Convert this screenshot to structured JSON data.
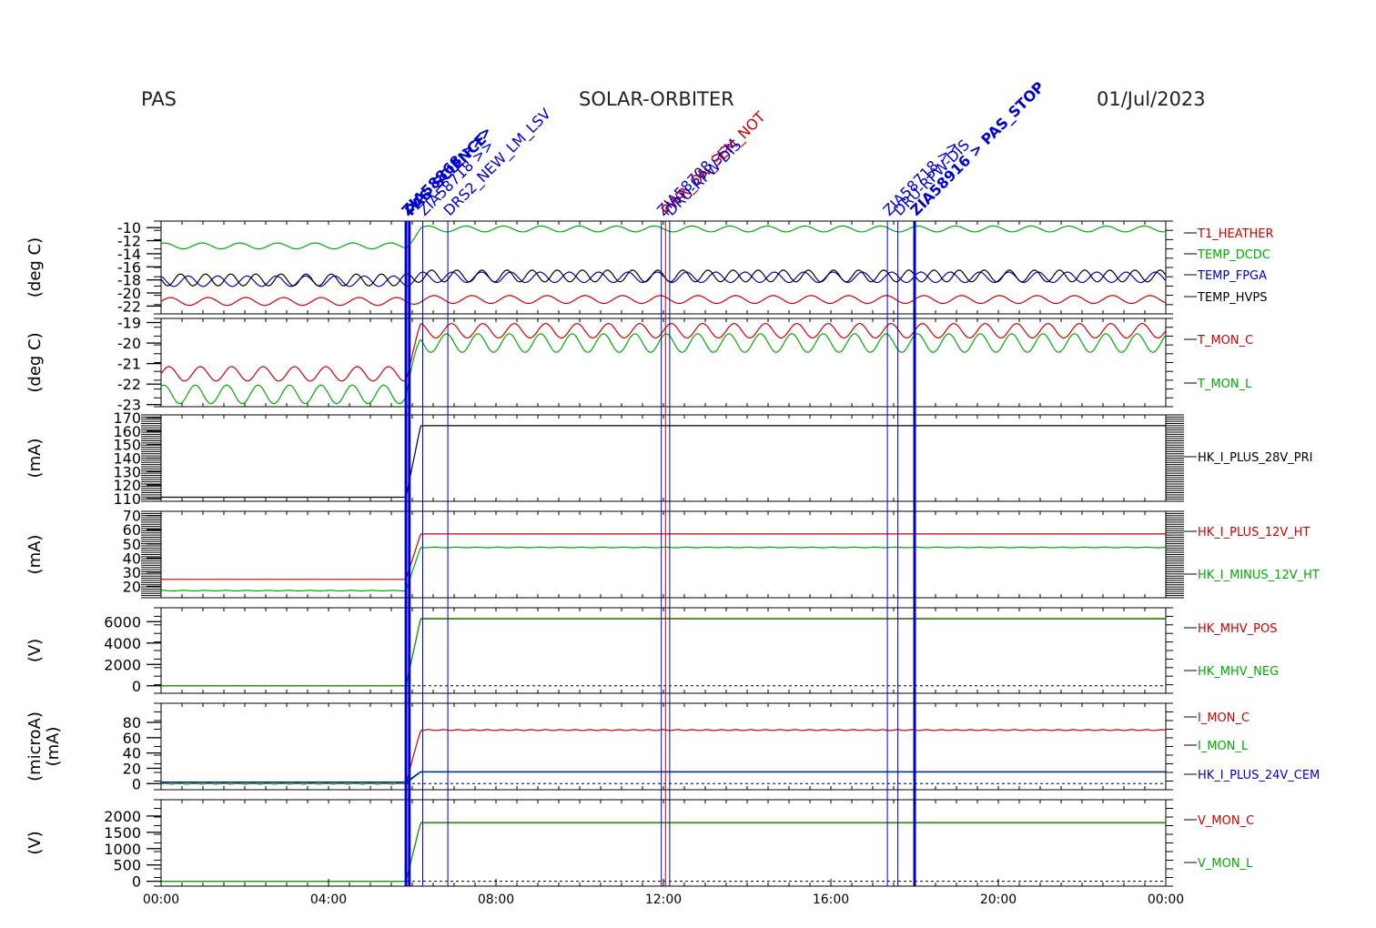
{
  "header": {
    "left": "PAS",
    "center": "SOLAR-ORBITER",
    "right": "01/Jul/2023"
  },
  "colors": {
    "red": "#cc0000",
    "green": "#00aa00",
    "blue": "#0000cc",
    "black": "#000000",
    "brown": "#8b5a00"
  },
  "chart_data": {
    "type": "line",
    "x_axis": {
      "ticks": [
        "00:00",
        "04:00",
        "08:00",
        "12:00",
        "16:00",
        "20:00",
        "00:00"
      ],
      "range_hours": [
        0,
        24
      ]
    },
    "events": [
      {
        "t": 5.85,
        "color": "#0000cc",
        "label": "ZIA58868 >>>",
        "bold": true
      },
      {
        "t": 5.93,
        "color": "#0000cc",
        "label": "PAS_SCIENCE",
        "bold": true
      },
      {
        "t": 6.25,
        "color": "#0000cc",
        "label": "ZIA58718 >>",
        "bold": false
      },
      {
        "t": 6.85,
        "color": "#0000cc",
        "label": "DRS2_NEW_LM_LSV",
        "bold": false
      },
      {
        "t": 11.95,
        "color": "#0000cc",
        "label": "ZIA58708 >>",
        "bold": false
      },
      {
        "t": 12.05,
        "color": "#cc0000",
        "label": "PWR_ON_SEM_NOT",
        "bold": false
      },
      {
        "t": 12.15,
        "color": "#0000cc",
        "label": "DRU-RPW-DIS",
        "bold": false
      },
      {
        "t": 17.35,
        "color": "#0000cc",
        "label": "ZIA58718 >>",
        "bold": false
      },
      {
        "t": 17.6,
        "color": "#0000cc",
        "label": "DRU-RPW-DIS",
        "bold": false
      },
      {
        "t": 18.0,
        "color": "#0000cc",
        "label": "ZIA58916 > PAS_STOP",
        "bold": true
      }
    ],
    "panels": [
      {
        "ylabel": "(deg C)",
        "ylim": [
          -23.2,
          -9
        ],
        "yticks": [
          "-10",
          "-12",
          "-14",
          "-16",
          "-18",
          "-20",
          "-22"
        ],
        "ytick_values": [
          -10,
          -12,
          -14,
          -16,
          -18,
          -20,
          -22
        ],
        "series": [
          {
            "name": "T1_HEATHER",
            "color": "#cc0000",
            "before": -21.3,
            "after": -21.0,
            "amp": 0.6,
            "period": 0.9
          },
          {
            "name": "TEMP_DCDC",
            "color": "#00aa00",
            "before": -12.8,
            "after": -10.2,
            "amp": 0.45,
            "period": 0.9
          },
          {
            "name": "TEMP_FPGA",
            "color": "#0000cc",
            "before": -18.2,
            "after": -17.6,
            "amp": 0.8,
            "period": 0.7
          },
          {
            "name": "TEMP_HVPS",
            "color": "#000000",
            "before": -18.0,
            "after": -17.4,
            "amp": 0.9,
            "period": 0.6
          }
        ]
      },
      {
        "ylabel": "(deg C)",
        "ylim": [
          -23.1,
          -18.8
        ],
        "yticks": [
          "-19",
          "-20",
          "-21",
          "-22",
          "-23"
        ],
        "ytick_values": [
          -19,
          -20,
          -21,
          -22,
          -23
        ],
        "series": [
          {
            "name": "T_MON_C",
            "color": "#cc0000",
            "before": -21.5,
            "after": -19.4,
            "amp": 0.35,
            "period": 0.75
          },
          {
            "name": "T_MON_L",
            "color": "#00aa00",
            "before": -22.5,
            "after": -20.0,
            "amp": 0.45,
            "period": 0.75
          }
        ]
      },
      {
        "ylabel": "(mA)",
        "ylim": [
          108,
          172
        ],
        "yticks": [
          "170",
          "160",
          "150",
          "140",
          "130",
          "120",
          "110"
        ],
        "ytick_values": [
          170,
          160,
          150,
          140,
          130,
          120,
          110
        ],
        "series": [
          {
            "name": "HK_I_PLUS_28V_PRI",
            "color": "#000000",
            "before": 111,
            "after": 164,
            "amp": 0,
            "period": 1
          }
        ]
      },
      {
        "ylabel": "(mA)",
        "ylim": [
          12,
          73
        ],
        "yticks": [
          "70",
          "60",
          "50",
          "40",
          "30",
          "20"
        ],
        "ytick_values": [
          70,
          60,
          50,
          40,
          30,
          20
        ],
        "series": [
          {
            "name": "HK_I_PLUS_12V_HT",
            "color": "#cc0000",
            "before": 25,
            "after": 57,
            "amp": 0,
            "period": 1
          },
          {
            "name": "HK_I_MINUS_12V_HT",
            "color": "#00aa00",
            "before": 17,
            "after": 47.5,
            "amp": 0.2,
            "period": 0.5
          }
        ]
      },
      {
        "ylabel": "(V)",
        "ylim": [
          -700,
          7300
        ],
        "yticks": [
          "6000",
          "4000",
          "2000",
          "0"
        ],
        "ytick_values": [
          6000,
          4000,
          2000,
          0
        ],
        "series": [
          {
            "name": "HK_MHV_POS",
            "color": "#cc0000",
            "before": 0,
            "after": 6300,
            "amp": 0,
            "period": 1
          },
          {
            "name": "HK_MHV_NEG",
            "color": "#00aa00",
            "before": 0,
            "after": 6250,
            "amp": 0,
            "period": 1
          }
        ]
      },
      {
        "ylabel": "(microA)",
        "ylabel2": "(mA)",
        "ylim": [
          -8,
          105
        ],
        "yticks": [
          "80",
          "60",
          "40",
          "20",
          "0"
        ],
        "ytick_values": [
          80,
          60,
          40,
          20,
          0
        ],
        "series": [
          {
            "name": "I_MON_C",
            "color": "#cc0000",
            "before": 0,
            "after": 70,
            "amp": 0.6,
            "period": 0.35
          },
          {
            "name": "I_MON_L",
            "color": "#00aa00",
            "before": 0,
            "after": 15,
            "amp": 0,
            "period": 1
          },
          {
            "name": "HK_I_PLUS_24V_CEM",
            "color": "#0000cc",
            "before": 2,
            "after": 15.5,
            "amp": 0,
            "period": 1
          }
        ]
      },
      {
        "ylabel": "(V)",
        "ylim": [
          -150,
          2500
        ],
        "yticks": [
          "2000",
          "1500",
          "1000",
          "500",
          "0"
        ],
        "ytick_values": [
          2000,
          1500,
          1000,
          500,
          0
        ],
        "series": [
          {
            "name": "V_MON_C",
            "color": "#cc0000",
            "before": 0,
            "after": 1800,
            "amp": 0,
            "period": 1
          },
          {
            "name": "V_MON_L",
            "color": "#00aa00",
            "before": 0,
            "after": 1790,
            "amp": 0,
            "period": 1
          }
        ]
      }
    ]
  }
}
